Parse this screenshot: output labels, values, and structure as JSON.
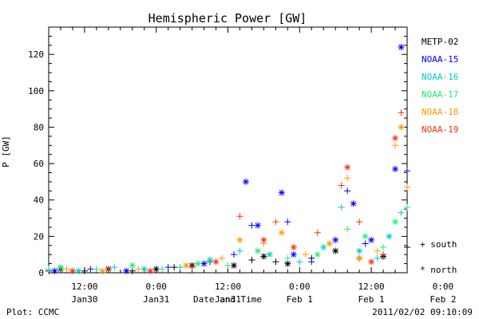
{
  "chart_data": {
    "type": "scatter",
    "title": "Hemispheric Power [GW]",
    "xlabel": "Date and Time",
    "ylabel": "P [GW]",
    "ylim": [
      0,
      135
    ],
    "xlim_hours": [
      -18,
      42
    ],
    "grid": false,
    "legend_position": "right",
    "x_ticks": [
      {
        "hour": -12,
        "time": "12:00",
        "date": "Jan30"
      },
      {
        "hour": 0,
        "time": "0:00",
        "date": "Jan31"
      },
      {
        "hour": 12,
        "time": "12:00",
        "date": "Jan31"
      },
      {
        "hour": 24,
        "time": "0:00",
        "date": "Feb 1"
      },
      {
        "hour": 36,
        "time": "12:00",
        "date": "Feb 1"
      },
      {
        "hour": 48,
        "time": "0:00",
        "date": "Feb 2"
      }
    ],
    "y_ticks": [
      0,
      20,
      40,
      60,
      80,
      100,
      120
    ],
    "marker_key": [
      {
        "symbol": "+",
        "label": "south"
      },
      {
        "symbol": "*",
        "label": "north"
      }
    ],
    "series": [
      {
        "name": "METP-02",
        "color": "#000000",
        "points": [
          {
            "x": -18,
            "y": 1,
            "m": "+"
          },
          {
            "x": -16,
            "y": 2,
            "m": "*"
          },
          {
            "x": -12,
            "y": 1,
            "m": "+"
          },
          {
            "x": -8,
            "y": 2,
            "m": "*"
          },
          {
            "x": -4,
            "y": 1,
            "m": "+"
          },
          {
            "x": 0,
            "y": 2,
            "m": "*"
          },
          {
            "x": 3,
            "y": 3,
            "m": "+"
          },
          {
            "x": 6,
            "y": 4,
            "m": "*"
          },
          {
            "x": 9,
            "y": 6,
            "m": "+"
          },
          {
            "x": 13,
            "y": 4,
            "m": "*"
          },
          {
            "x": 16,
            "y": 7,
            "m": "+"
          },
          {
            "x": 18,
            "y": 9,
            "m": "*"
          },
          {
            "x": 20,
            "y": 6,
            "m": "+"
          },
          {
            "x": 22,
            "y": 5,
            "m": "*"
          },
          {
            "x": 26,
            "y": 8,
            "m": "+"
          },
          {
            "x": 30,
            "y": 12,
            "m": "*"
          },
          {
            "x": 34,
            "y": 8,
            "m": "+"
          },
          {
            "x": 38,
            "y": 9,
            "m": "*"
          },
          {
            "x": 42,
            "y": 14,
            "m": "+"
          },
          {
            "x": 46,
            "y": 10,
            "m": "*"
          },
          {
            "x": 50,
            "y": 12,
            "m": "+"
          },
          {
            "x": 54,
            "y": 8,
            "m": "*"
          }
        ]
      },
      {
        "name": "NOAA-15",
        "color": "#0000ff",
        "points": [
          {
            "x": -17,
            "y": 1,
            "m": "*"
          },
          {
            "x": -11,
            "y": 2,
            "m": "+"
          },
          {
            "x": -5,
            "y": 1,
            "m": "*"
          },
          {
            "x": 2,
            "y": 3,
            "m": "+"
          },
          {
            "x": 8,
            "y": 5,
            "m": "*"
          },
          {
            "x": 13,
            "y": 10,
            "m": "+"
          },
          {
            "x": 15,
            "y": 50,
            "m": "*"
          },
          {
            "x": 16,
            "y": 26,
            "m": "+"
          },
          {
            "x": 17,
            "y": 26,
            "m": "*"
          },
          {
            "x": 21,
            "y": 44,
            "m": "*"
          },
          {
            "x": 22,
            "y": 28,
            "m": "+"
          },
          {
            "x": 23,
            "y": 10,
            "m": "*"
          },
          {
            "x": 26,
            "y": 6,
            "m": "+"
          },
          {
            "x": 30,
            "y": 18,
            "m": "*"
          },
          {
            "x": 32,
            "y": 45,
            "m": "+"
          },
          {
            "x": 33,
            "y": 38,
            "m": "*"
          },
          {
            "x": 35,
            "y": 16,
            "m": "+"
          },
          {
            "x": 36,
            "y": 18,
            "m": "*"
          },
          {
            "x": 40,
            "y": 57,
            "m": "*"
          },
          {
            "x": 41,
            "y": 124,
            "m": "*"
          },
          {
            "x": 42,
            "y": 56,
            "m": "+"
          },
          {
            "x": 43,
            "y": 74,
            "m": "*"
          },
          {
            "x": 44,
            "y": 55,
            "m": "+"
          },
          {
            "x": 45,
            "y": 38,
            "m": "*"
          },
          {
            "x": 50,
            "y": 14,
            "m": "+"
          },
          {
            "x": 51,
            "y": 32,
            "m": "*"
          },
          {
            "x": 52,
            "y": 30,
            "m": "+"
          },
          {
            "x": 55,
            "y": 8,
            "m": "*"
          }
        ]
      },
      {
        "name": "NOAA-16",
        "color": "#00cccc",
        "points": [
          {
            "x": -18,
            "y": 2,
            "m": "+"
          },
          {
            "x": -13,
            "y": 1,
            "m": "*"
          },
          {
            "x": -7,
            "y": 3,
            "m": "+"
          },
          {
            "x": -2,
            "y": 2,
            "m": "*"
          },
          {
            "x": 4,
            "y": 3,
            "m": "+"
          },
          {
            "x": 9,
            "y": 7,
            "m": "*"
          },
          {
            "x": 14,
            "y": 12,
            "m": "+"
          },
          {
            "x": 19,
            "y": 10,
            "m": "*"
          },
          {
            "x": 24,
            "y": 6,
            "m": "+"
          },
          {
            "x": 28,
            "y": 14,
            "m": "*"
          },
          {
            "x": 31,
            "y": 36,
            "m": "+"
          },
          {
            "x": 34,
            "y": 12,
            "m": "*"
          },
          {
            "x": 37,
            "y": 8,
            "m": "+"
          },
          {
            "x": 39,
            "y": 20,
            "m": "*"
          },
          {
            "x": 41,
            "y": 33,
            "m": "+"
          },
          {
            "x": 44,
            "y": 28,
            "m": "*"
          },
          {
            "x": 47,
            "y": 22,
            "m": "+"
          },
          {
            "x": 50,
            "y": 6,
            "m": "*"
          },
          {
            "x": 53,
            "y": 15,
            "m": "+"
          }
        ]
      },
      {
        "name": "NOAA-17",
        "color": "#22ee77",
        "points": [
          {
            "x": -16,
            "y": 3,
            "m": "*"
          },
          {
            "x": -10,
            "y": 2,
            "m": "+"
          },
          {
            "x": -4,
            "y": 4,
            "m": "*"
          },
          {
            "x": 1,
            "y": 2,
            "m": "+"
          },
          {
            "x": 7,
            "y": 5,
            "m": "*"
          },
          {
            "x": 12,
            "y": 4,
            "m": "+"
          },
          {
            "x": 17,
            "y": 12,
            "m": "*"
          },
          {
            "x": 22,
            "y": 8,
            "m": "+"
          },
          {
            "x": 27,
            "y": 10,
            "m": "*"
          },
          {
            "x": 32,
            "y": 24,
            "m": "+"
          },
          {
            "x": 35,
            "y": 20,
            "m": "*"
          },
          {
            "x": 38,
            "y": 14,
            "m": "+"
          },
          {
            "x": 40,
            "y": 28,
            "m": "*"
          },
          {
            "x": 42,
            "y": 36,
            "m": "+"
          },
          {
            "x": 45,
            "y": 30,
            "m": "*"
          },
          {
            "x": 46,
            "y": 26,
            "m": "+"
          },
          {
            "x": 49,
            "y": 18,
            "m": "*"
          },
          {
            "x": 52,
            "y": 16,
            "m": "+"
          },
          {
            "x": 56,
            "y": 22,
            "m": "*"
          }
        ]
      },
      {
        "name": "NOAA-18",
        "color": "#ff9900",
        "points": [
          {
            "x": -15,
            "y": 2,
            "m": "+"
          },
          {
            "x": -9,
            "y": 1,
            "m": "*"
          },
          {
            "x": -3,
            "y": 2,
            "m": "+"
          },
          {
            "x": 5,
            "y": 4,
            "m": "*"
          },
          {
            "x": 11,
            "y": 8,
            "m": "+"
          },
          {
            "x": 14,
            "y": 18,
            "m": "*"
          },
          {
            "x": 18,
            "y": 16,
            "m": "+"
          },
          {
            "x": 21,
            "y": 22,
            "m": "*"
          },
          {
            "x": 25,
            "y": 10,
            "m": "+"
          },
          {
            "x": 29,
            "y": 16,
            "m": "*"
          },
          {
            "x": 32,
            "y": 52,
            "m": "+"
          },
          {
            "x": 34,
            "y": 8,
            "m": "*"
          },
          {
            "x": 37,
            "y": 12,
            "m": "+"
          },
          {
            "x": 40,
            "y": 70,
            "m": "+"
          },
          {
            "x": 41,
            "y": 80,
            "m": "*"
          },
          {
            "x": 42,
            "y": 47,
            "m": "+"
          },
          {
            "x": 43,
            "y": 40,
            "m": "*"
          },
          {
            "x": 45,
            "y": 32,
            "m": "+"
          },
          {
            "x": 47,
            "y": 20,
            "m": "*"
          },
          {
            "x": 50,
            "y": 12,
            "m": "+"
          },
          {
            "x": 53,
            "y": 35,
            "m": "*"
          },
          {
            "x": 56,
            "y": 25,
            "m": "+"
          }
        ]
      },
      {
        "name": "NOAA-19",
        "color": "#ee3311",
        "points": [
          {
            "x": -14,
            "y": 1,
            "m": "*"
          },
          {
            "x": -8,
            "y": 2,
            "m": "+"
          },
          {
            "x": -1,
            "y": 1,
            "m": "*"
          },
          {
            "x": 6,
            "y": 3,
            "m": "+"
          },
          {
            "x": 10,
            "y": 6,
            "m": "*"
          },
          {
            "x": 14,
            "y": 31,
            "m": "+"
          },
          {
            "x": 18,
            "y": 18,
            "m": "*"
          },
          {
            "x": 20,
            "y": 28,
            "m": "+"
          },
          {
            "x": 23,
            "y": 14,
            "m": "*"
          },
          {
            "x": 27,
            "y": 22,
            "m": "+"
          },
          {
            "x": 31,
            "y": 48,
            "m": "+"
          },
          {
            "x": 32,
            "y": 58,
            "m": "*"
          },
          {
            "x": 34,
            "y": 28,
            "m": "+"
          },
          {
            "x": 36,
            "y": 6,
            "m": "*"
          },
          {
            "x": 38,
            "y": 10,
            "m": "+"
          },
          {
            "x": 40,
            "y": 74,
            "m": "*"
          },
          {
            "x": 41,
            "y": 88,
            "m": "+"
          },
          {
            "x": 43,
            "y": 57,
            "m": "+"
          },
          {
            "x": 44,
            "y": 54,
            "m": "*"
          },
          {
            "x": 46,
            "y": 41,
            "m": "*"
          },
          {
            "x": 47,
            "y": 36,
            "m": "+"
          },
          {
            "x": 51,
            "y": 22,
            "m": "*"
          },
          {
            "x": 54,
            "y": 10,
            "m": "+"
          },
          {
            "x": 57,
            "y": 60,
            "m": "*"
          }
        ]
      }
    ]
  },
  "footer": {
    "left": "Plot: CCMC",
    "right": "2011/02/02 09:10:09"
  }
}
